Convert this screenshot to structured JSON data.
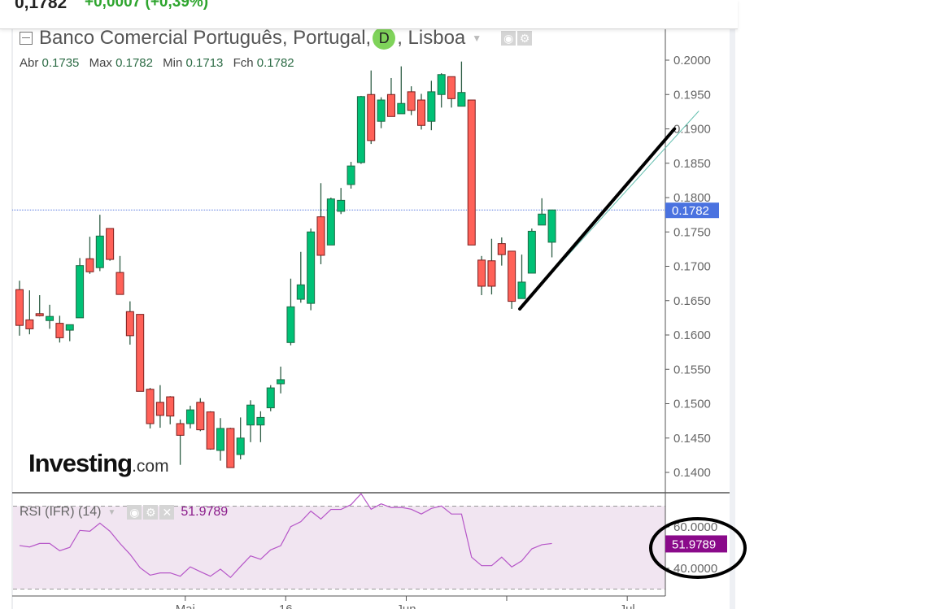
{
  "header": {
    "last_price": "0,1782",
    "change": "+0,0007 (+0,39%)"
  },
  "legend": {
    "title_before": "Banco Comercial Português, Portugal,",
    "badge": "D",
    "title_after": ", Lisboa",
    "ohlc": [
      {
        "label": "Abr",
        "value": "0.1735"
      },
      {
        "label": "Max",
        "value": "0.1782"
      },
      {
        "label": "Min",
        "value": "0.1713"
      },
      {
        "label": "Fch",
        "value": "0.1782"
      }
    ]
  },
  "rsi_legend": {
    "label": "RSI (IFR) (14)",
    "value": "51.9789"
  },
  "logo": {
    "name": "Investing",
    "suffix": ".com"
  },
  "colors": {
    "up": "#00c176",
    "down": "#ff6158",
    "rsi": "#b656c8",
    "rsi_fill": "#f1e5f1",
    "last_price_bg": "#4a72e0",
    "rsi_label_bg": "#8a0a8a"
  },
  "chart_data": [
    {
      "type": "candlestick",
      "title": "Banco Comercial Português, Portugal, D, Lisboa",
      "ylim": [
        0.135,
        0.2055
      ],
      "yticks": [
        "0.1400",
        "0.1450",
        "0.1500",
        "0.1550",
        "0.1600",
        "0.1650",
        "0.1700",
        "0.1750",
        "0.1800",
        "0.1850",
        "0.1900",
        "0.1950",
        "0.2000"
      ],
      "last_price": 0.1782,
      "last_price_label": "0.1782",
      "xticks": [
        {
          "label": "Mai",
          "index": 16.5
        },
        {
          "label": "16",
          "index": 26.5
        },
        {
          "label": "Jun",
          "index": 38.5
        },
        {
          "label": "",
          "index": 48.5
        },
        {
          "label": "Jul",
          "index": 60.5
        }
      ],
      "trendline": {
        "from": {
          "index": 49.8,
          "price": 0.1638
        },
        "to": {
          "index": 65.2,
          "price": 0.19
        }
      },
      "ohlc": [
        [
          0.1666,
          0.1679,
          0.1599,
          0.1614
        ],
        [
          0.1622,
          0.1665,
          0.1601,
          0.1609
        ],
        [
          0.1631,
          0.1658,
          0.1627,
          0.1628
        ],
        [
          0.1621,
          0.1644,
          0.1609,
          0.1627
        ],
        [
          0.1617,
          0.1628,
          0.1589,
          0.1596
        ],
        [
          0.1607,
          0.1615,
          0.1591,
          0.1615
        ],
        [
          0.1625,
          0.1712,
          0.1625,
          0.1701
        ],
        [
          0.1711,
          0.1743,
          0.1689,
          0.1692
        ],
        [
          0.1698,
          0.1775,
          0.1693,
          0.1744
        ],
        [
          0.1755,
          0.1755,
          0.1708,
          0.171
        ],
        [
          0.1691,
          0.1715,
          0.1659,
          0.1659
        ],
        [
          0.1634,
          0.1649,
          0.1586,
          0.1599
        ],
        [
          0.163,
          0.163,
          0.1518,
          0.1518
        ],
        [
          0.1521,
          0.1523,
          0.1464,
          0.1471
        ],
        [
          0.1502,
          0.1527,
          0.1465,
          0.1483
        ],
        [
          0.151,
          0.1511,
          0.147,
          0.1482
        ],
        [
          0.1471,
          0.1477,
          0.1411,
          0.1454
        ],
        [
          0.1471,
          0.1497,
          0.1464,
          0.1491
        ],
        [
          0.1502,
          0.1508,
          0.146,
          0.1462
        ],
        [
          0.1488,
          0.1489,
          0.1433,
          0.1434
        ],
        [
          0.1432,
          0.1479,
          0.1417,
          0.1464
        ],
        [
          0.1464,
          0.1465,
          0.1407,
          0.1407
        ],
        [
          0.1426,
          0.148,
          0.1419,
          0.145
        ],
        [
          0.1469,
          0.1505,
          0.1444,
          0.1498
        ],
        [
          0.1469,
          0.1489,
          0.1444,
          0.148
        ],
        [
          0.1494,
          0.1527,
          0.1489,
          0.1523
        ],
        [
          0.1529,
          0.1554,
          0.1515,
          0.1535
        ],
        [
          0.1589,
          0.1682,
          0.1585,
          0.1641
        ],
        [
          0.1652,
          0.1721,
          0.1647,
          0.1673
        ],
        [
          0.1646,
          0.1755,
          0.1636,
          0.175
        ],
        [
          0.1772,
          0.1821,
          0.1703,
          0.1716
        ],
        [
          0.1731,
          0.18,
          0.1731,
          0.1798
        ],
        [
          0.178,
          0.1814,
          0.1776,
          0.1796
        ],
        [
          0.1819,
          0.1852,
          0.1813,
          0.1846
        ],
        [
          0.1851,
          0.1948,
          0.1849,
          0.1947
        ],
        [
          0.195,
          0.1985,
          0.1878,
          0.1883
        ],
        [
          0.1911,
          0.1946,
          0.1901,
          0.1942
        ],
        [
          0.195,
          0.1974,
          0.1918,
          0.1918
        ],
        [
          0.1922,
          0.1991,
          0.1922,
          0.1937
        ],
        [
          0.1954,
          0.1962,
          0.192,
          0.1927
        ],
        [
          0.1942,
          0.1951,
          0.1899,
          0.1905
        ],
        [
          0.1911,
          0.197,
          0.1898,
          0.1954
        ],
        [
          0.195,
          0.1981,
          0.1931,
          0.1979
        ],
        [
          0.1976,
          0.1976,
          0.1931,
          0.1944
        ],
        [
          0.1933,
          0.1998,
          0.1933,
          0.1953
        ],
        [
          0.1942,
          0.1942,
          0.1731,
          0.1731
        ],
        [
          0.1709,
          0.1715,
          0.1658,
          0.1671
        ],
        [
          0.1708,
          0.174,
          0.1659,
          0.1671
        ],
        [
          0.1733,
          0.1742,
          0.1701,
          0.1717
        ],
        [
          0.1722,
          0.1722,
          0.1638,
          0.1649
        ],
        [
          0.1653,
          0.1717,
          0.1653,
          0.1677
        ],
        [
          0.169,
          0.1755,
          0.169,
          0.1751
        ],
        [
          0.176,
          0.1799,
          0.176,
          0.1776
        ],
        [
          0.1735,
          0.1782,
          0.1713,
          0.1782
        ]
      ]
    },
    {
      "type": "line",
      "title": "RSI (IFR) (14)",
      "ylim": [
        27,
        77
      ],
      "levels": [
        30,
        70
      ],
      "yticks": [
        "60.0000",
        "40.0000"
      ],
      "tick_values": [
        60,
        40
      ],
      "last_value_label": "51.9789",
      "values": [
        51.0,
        50.3,
        52.0,
        52.0,
        48.5,
        50.1,
        58.3,
        57.9,
        61.8,
        57.9,
        52.0,
        46.8,
        40.3,
        36.7,
        37.8,
        37.8,
        36.2,
        40.7,
        38.4,
        36.2,
        39.6,
        35.6,
        40.9,
        46.0,
        44.4,
        48.9,
        50.9,
        60.1,
        62.5,
        67.6,
        63.8,
        68.4,
        68.4,
        70.7,
        76.0,
        68.5,
        71.1,
        69.3,
        69.4,
        68.5,
        66.2,
        68.9,
        70.1,
        66.2,
        66.2,
        45.4,
        41.3,
        41.3,
        45.4,
        40.7,
        43.6,
        49.4,
        51.4,
        51.98
      ]
    }
  ]
}
